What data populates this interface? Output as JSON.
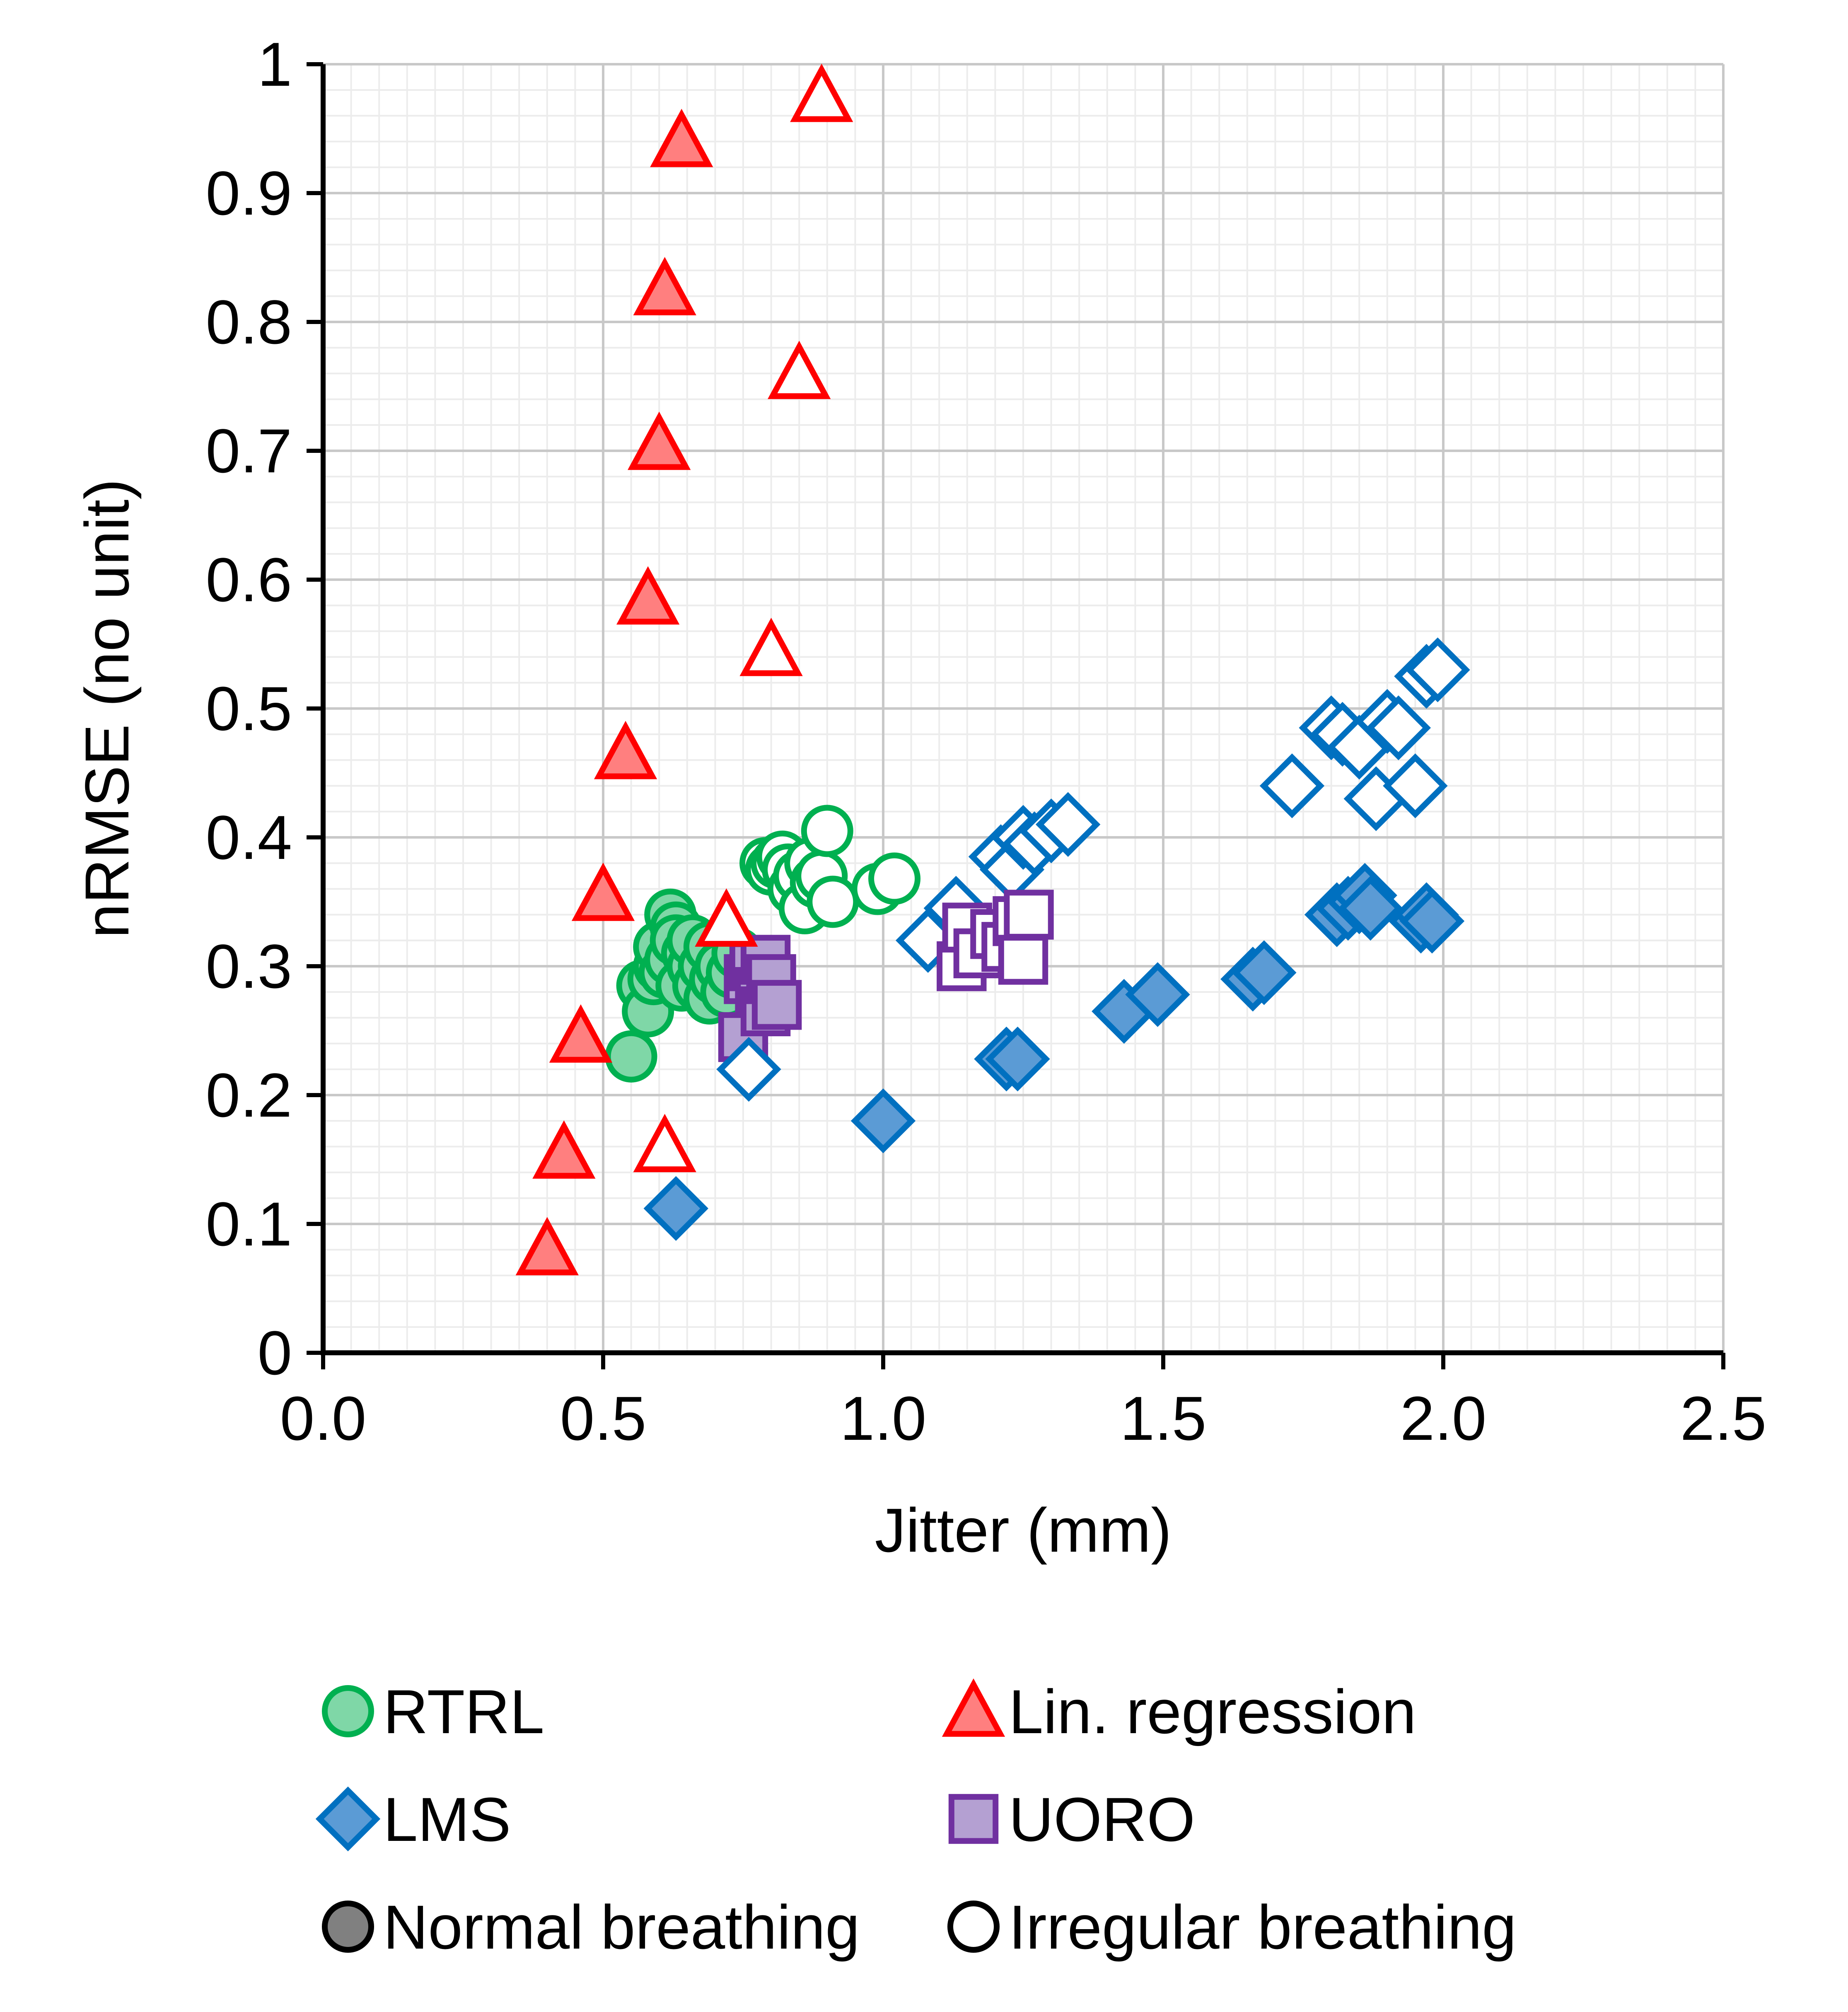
{
  "chart_data": {
    "type": "scatter",
    "title": "",
    "xlabel": "Jitter (mm)",
    "ylabel": "nRMSE (no unit)",
    "xlim": [
      0,
      2.5
    ],
    "ylim": [
      0,
      1
    ],
    "grid": true,
    "legend_position": "bottom",
    "x_ticks": [
      {
        "v": 0.0,
        "label": "0.0"
      },
      {
        "v": 0.5,
        "label": "0.5"
      },
      {
        "v": 1.0,
        "label": "1.0"
      },
      {
        "v": 1.5,
        "label": "1.5"
      },
      {
        "v": 2.0,
        "label": "2.0"
      },
      {
        "v": 2.5,
        "label": "2.5"
      }
    ],
    "y_ticks": [
      {
        "v": 0,
        "label": "0"
      },
      {
        "v": 0.1,
        "label": "0.1"
      },
      {
        "v": 0.2,
        "label": "0.2"
      },
      {
        "v": 0.3,
        "label": "0.3"
      },
      {
        "v": 0.4,
        "label": "0.4"
      },
      {
        "v": 0.5,
        "label": "0.5"
      },
      {
        "v": 0.6,
        "label": "0.6"
      },
      {
        "v": 0.7,
        "label": "0.7"
      },
      {
        "v": 0.8,
        "label": "0.8"
      },
      {
        "v": 0.9,
        "label": "0.9"
      },
      {
        "v": 1,
        "label": "1"
      }
    ],
    "legend": [
      {
        "label": "RTRL",
        "marker": "circle",
        "color": "#00b050",
        "fill": "#7fd7a7"
      },
      {
        "label": "Lin. regression",
        "marker": "triangle",
        "color": "#ff0000",
        "fill": "#ff7f7f"
      },
      {
        "label": "LMS",
        "marker": "diamond",
        "color": "#0070c0",
        "fill": "#5b9bd5"
      },
      {
        "label": "UORO",
        "marker": "square",
        "color": "#7030a0",
        "fill": "#b4a0d2"
      },
      {
        "label": "Normal breathing",
        "marker": "circle",
        "color": "#000000",
        "fill": "#808080"
      },
      {
        "label": "Irregular breathing",
        "marker": "circle",
        "color": "#000000",
        "fill": "#ffffff"
      }
    ],
    "series": [
      {
        "name": "RTRL",
        "marker": "circle",
        "color": "#00b050",
        "fill": "#7fd7a7",
        "normal": [
          [
            0.55,
            0.23
          ],
          [
            0.57,
            0.285
          ],
          [
            0.58,
            0.265
          ],
          [
            0.59,
            0.29
          ],
          [
            0.6,
            0.3
          ],
          [
            0.6,
            0.315
          ],
          [
            0.61,
            0.295
          ],
          [
            0.62,
            0.34
          ],
          [
            0.62,
            0.305
          ],
          [
            0.63,
            0.33
          ],
          [
            0.63,
            0.32
          ],
          [
            0.64,
            0.285
          ],
          [
            0.65,
            0.31
          ],
          [
            0.66,
            0.3
          ],
          [
            0.66,
            0.32
          ],
          [
            0.67,
            0.285
          ],
          [
            0.68,
            0.3
          ],
          [
            0.69,
            0.275
          ],
          [
            0.69,
            0.315
          ],
          [
            0.7,
            0.29
          ],
          [
            0.71,
            0.3
          ],
          [
            0.72,
            0.28
          ],
          [
            0.73,
            0.295
          ],
          [
            0.74,
            0.31
          ]
        ],
        "irregular": [
          [
            0.79,
            0.38
          ],
          [
            0.8,
            0.375
          ],
          [
            0.81,
            0.38
          ],
          [
            0.82,
            0.385
          ],
          [
            0.83,
            0.375
          ],
          [
            0.84,
            0.36
          ],
          [
            0.85,
            0.37
          ],
          [
            0.86,
            0.345
          ],
          [
            0.87,
            0.38
          ],
          [
            0.88,
            0.365
          ],
          [
            0.89,
            0.37
          ],
          [
            0.9,
            0.405
          ],
          [
            0.91,
            0.35
          ],
          [
            0.99,
            0.36
          ],
          [
            1.02,
            0.368
          ]
        ]
      },
      {
        "name": "Lin. regression",
        "marker": "triangle",
        "color": "#ff0000",
        "fill": "#ff7f7f",
        "normal": [
          [
            0.4,
            0.08
          ],
          [
            0.43,
            0.155
          ],
          [
            0.46,
            0.245
          ],
          [
            0.5,
            0.355
          ],
          [
            0.54,
            0.465
          ],
          [
            0.58,
            0.585
          ],
          [
            0.6,
            0.705
          ],
          [
            0.61,
            0.825
          ],
          [
            0.64,
            0.94
          ]
        ],
        "irregular": [
          [
            0.61,
            0.16
          ],
          [
            0.72,
            0.335
          ],
          [
            0.8,
            0.545
          ],
          [
            0.85,
            0.76
          ],
          [
            0.89,
            0.975
          ]
        ]
      },
      {
        "name": "LMS",
        "marker": "diamond",
        "color": "#0070c0",
        "fill": "#5b9bd5",
        "normal": [
          [
            0.63,
            0.112
          ],
          [
            1.0,
            0.18
          ],
          [
            1.22,
            0.228
          ],
          [
            1.24,
            0.228
          ],
          [
            1.43,
            0.265
          ],
          [
            1.49,
            0.278
          ],
          [
            1.66,
            0.29
          ],
          [
            1.68,
            0.295
          ],
          [
            1.81,
            0.34
          ],
          [
            1.83,
            0.345
          ],
          [
            1.85,
            0.35
          ],
          [
            1.86,
            0.355
          ],
          [
            1.87,
            0.345
          ],
          [
            1.96,
            0.335
          ],
          [
            1.97,
            0.34
          ],
          [
            1.98,
            0.335
          ]
        ],
        "irregular": [
          [
            0.76,
            0.22
          ],
          [
            1.08,
            0.32
          ],
          [
            1.13,
            0.345
          ],
          [
            1.21,
            0.385
          ],
          [
            1.23,
            0.375
          ],
          [
            1.25,
            0.4
          ],
          [
            1.27,
            0.395
          ],
          [
            1.3,
            0.405
          ],
          [
            1.33,
            0.41
          ],
          [
            1.73,
            0.44
          ],
          [
            1.8,
            0.485
          ],
          [
            1.82,
            0.48
          ],
          [
            1.85,
            0.47
          ],
          [
            1.88,
            0.43
          ],
          [
            1.9,
            0.49
          ],
          [
            1.92,
            0.485
          ],
          [
            1.95,
            0.44
          ],
          [
            1.97,
            0.525
          ],
          [
            1.99,
            0.53
          ]
        ]
      },
      {
        "name": "UORO",
        "marker": "square",
        "color": "#7030a0",
        "fill": "#b4a0d2",
        "normal": [
          [
            0.75,
            0.245
          ],
          [
            0.76,
            0.29
          ],
          [
            0.77,
            0.3
          ],
          [
            0.78,
            0.28
          ],
          [
            0.79,
            0.305
          ],
          [
            0.79,
            0.265
          ],
          [
            0.8,
            0.29
          ],
          [
            0.81,
            0.27
          ]
        ],
        "irregular": [
          [
            1.14,
            0.3
          ],
          [
            1.15,
            0.33
          ],
          [
            1.17,
            0.31
          ],
          [
            1.2,
            0.325
          ],
          [
            1.22,
            0.315
          ],
          [
            1.24,
            0.335
          ],
          [
            1.25,
            0.305
          ],
          [
            1.26,
            0.34
          ]
        ]
      }
    ]
  }
}
